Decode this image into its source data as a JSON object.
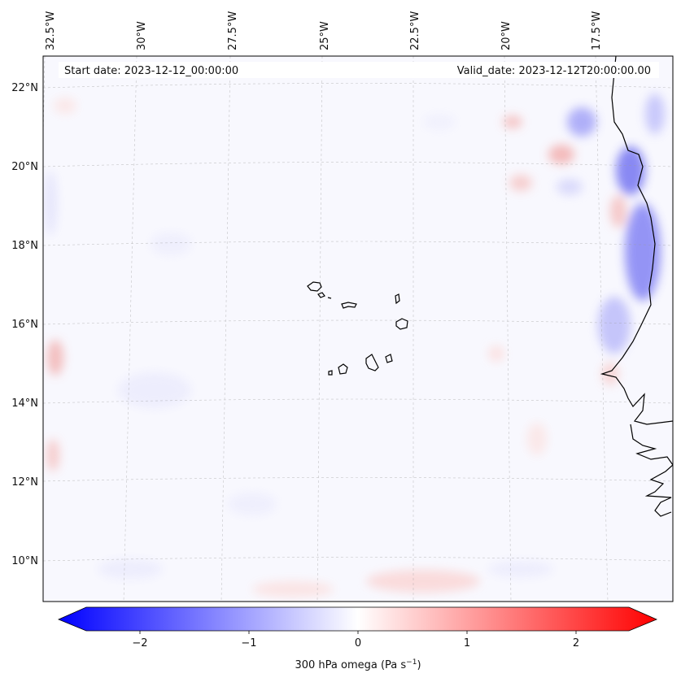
{
  "map": {
    "lon_labels": [
      "32.5°W",
      "30°W",
      "27.5°W",
      "25°W",
      "22.5°W",
      "20°W",
      "17.5°W"
    ],
    "lat_labels": [
      "22°N",
      "20°N",
      "18°N",
      "16°N",
      "14°N",
      "12°N",
      "10°N"
    ],
    "start_date": "Start date: 2023-12-12_00:00:00",
    "valid_date": "Valid_date: 2023-12-12T20:00:00.00"
  },
  "colorbar": {
    "ticks": [
      "−2",
      "−1",
      "0",
      "1",
      "2"
    ],
    "label_main": "300 hPa omega (Pa s",
    "label_exp": "−1",
    "label_close": ")",
    "colors": {
      "neg": "#0000ff",
      "zero": "#ffffff",
      "pos": "#ff0000"
    }
  }
}
